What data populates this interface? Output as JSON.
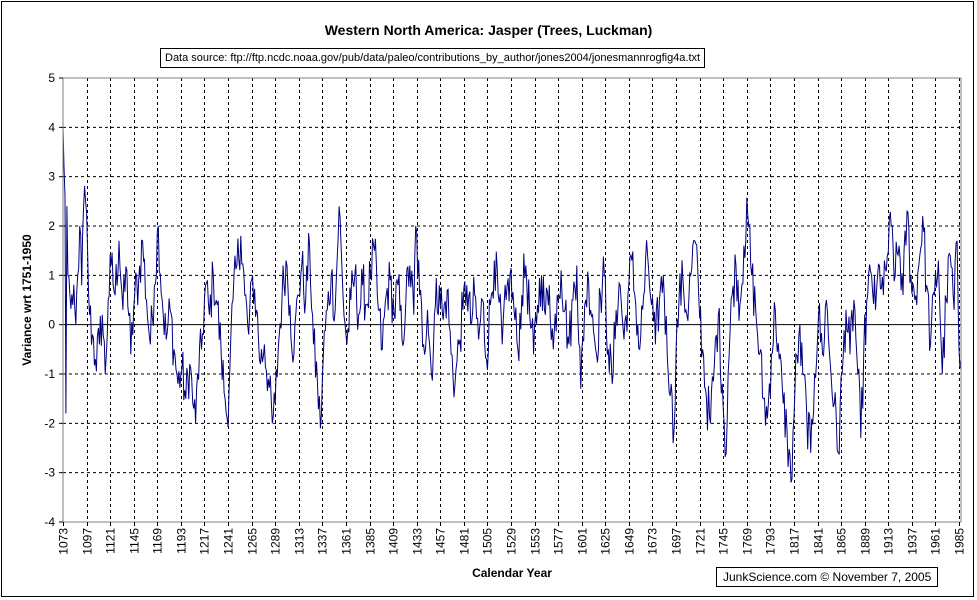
{
  "chart_data": {
    "type": "line",
    "title": "Western North America: Jasper (Trees, Luckman)",
    "source_note": "Data source: ftp://ftp.ncdc.noaa.gov/pub/data/paleo/contributions_by_author/jones2004/jonesmannrogfig4a.txt",
    "credit": "JunkScience.com ©  November 7, 2005",
    "xlabel": "Calendar Year",
    "ylabel": "Variance wrt 1751-1950",
    "xlim": [
      1073,
      1987
    ],
    "ylim": [
      -4,
      5
    ],
    "ytick_labels": [
      "5",
      "4",
      "3",
      "2",
      "1",
      "0",
      "-1",
      "-2",
      "-3",
      "-4"
    ],
    "yticks": [
      5,
      4,
      3,
      2,
      1,
      0,
      -1,
      -2,
      -3,
      -4
    ],
    "xtick_labels": [
      "1073",
      "1097",
      "1121",
      "1145",
      "1169",
      "1193",
      "1217",
      "1241",
      "1265",
      "1289",
      "1313",
      "1337",
      "1361",
      "1385",
      "1409",
      "1433",
      "1457",
      "1481",
      "1505",
      "1529",
      "1553",
      "1577",
      "1601",
      "1625",
      "1649",
      "1673",
      "1697",
      "1721",
      "1745",
      "1769",
      "1793",
      "1817",
      "1841",
      "1865",
      "1889",
      "1913",
      "1937",
      "1961",
      "1985"
    ],
    "xticks": [
      1073,
      1097,
      1121,
      1145,
      1169,
      1193,
      1217,
      1241,
      1265,
      1289,
      1313,
      1337,
      1361,
      1385,
      1409,
      1433,
      1457,
      1481,
      1505,
      1529,
      1553,
      1577,
      1601,
      1625,
      1649,
      1673,
      1697,
      1721,
      1745,
      1769,
      1793,
      1817,
      1841,
      1865,
      1889,
      1913,
      1937,
      1961,
      1985
    ],
    "grid": true,
    "series": [
      {
        "name": "Jasper",
        "color": "#000080",
        "anchors": [
          [
            1073,
            4.0
          ],
          [
            1074,
            3.2
          ],
          [
            1075,
            2.6
          ],
          [
            1076,
            -1.8
          ],
          [
            1077,
            2.4
          ],
          [
            1078,
            1.0
          ],
          [
            1080,
            0.6
          ],
          [
            1083,
            0.4
          ],
          [
            1086,
            0.0
          ],
          [
            1088,
            1.0
          ],
          [
            1090,
            2.0
          ],
          [
            1092,
            0.8
          ],
          [
            1094,
            2.4
          ],
          [
            1096,
            2.5
          ],
          [
            1098,
            1.5
          ],
          [
            1100,
            0.2
          ],
          [
            1103,
            -0.2
          ],
          [
            1106,
            -0.7
          ],
          [
            1110,
            -0.4
          ],
          [
            1113,
            0.2
          ],
          [
            1116,
            -1.0
          ],
          [
            1119,
            0.5
          ],
          [
            1122,
            1.2
          ],
          [
            1126,
            0.6
          ],
          [
            1130,
            1.7
          ],
          [
            1134,
            0.3
          ],
          [
            1138,
            1.1
          ],
          [
            1142,
            -0.6
          ],
          [
            1146,
            0.6
          ],
          [
            1150,
            0.9
          ],
          [
            1154,
            1.7
          ],
          [
            1158,
            0.5
          ],
          [
            1162,
            -0.4
          ],
          [
            1166,
            0.8
          ],
          [
            1170,
            2.0
          ],
          [
            1174,
            0.5
          ],
          [
            1178,
            -0.3
          ],
          [
            1182,
            0.3
          ],
          [
            1186,
            -0.5
          ],
          [
            1190,
            -1.2
          ],
          [
            1194,
            -0.9
          ],
          [
            1198,
            -1.5
          ],
          [
            1202,
            -0.8
          ],
          [
            1206,
            -1.7
          ],
          [
            1208,
            -2.0
          ],
          [
            1210,
            -1.0
          ],
          [
            1214,
            -0.5
          ],
          [
            1218,
            0.8
          ],
          [
            1222,
            0.2
          ],
          [
            1226,
            1.0
          ],
          [
            1230,
            0.4
          ],
          [
            1234,
            -0.6
          ],
          [
            1238,
            -1.5
          ],
          [
            1240,
            -1.9
          ],
          [
            1243,
            -0.8
          ],
          [
            1246,
            0.5
          ],
          [
            1250,
            1.2
          ],
          [
            1254,
            1.8
          ],
          [
            1258,
            0.6
          ],
          [
            1262,
            -0.2
          ],
          [
            1266,
            1.0
          ],
          [
            1270,
            0.3
          ],
          [
            1274,
            -0.8
          ],
          [
            1278,
            -0.4
          ],
          [
            1282,
            -1.1
          ],
          [
            1286,
            -2.0
          ],
          [
            1289,
            -1.6
          ],
          [
            1292,
            -0.5
          ],
          [
            1296,
            0.6
          ],
          [
            1300,
            1.3
          ],
          [
            1304,
            0.4
          ],
          [
            1308,
            -0.6
          ],
          [
            1312,
            0.6
          ],
          [
            1316,
            1.2
          ],
          [
            1320,
            0.5
          ],
          [
            1324,
            1.6
          ],
          [
            1328,
            -0.4
          ],
          [
            1332,
            -1.2
          ],
          [
            1335,
            -2.1
          ],
          [
            1338,
            -0.6
          ],
          [
            1342,
            0.3
          ],
          [
            1346,
            1.0
          ],
          [
            1350,
            0.3
          ],
          [
            1354,
            2.4
          ],
          [
            1358,
            0.6
          ],
          [
            1362,
            -0.4
          ],
          [
            1366,
            0.5
          ],
          [
            1370,
            1.0
          ],
          [
            1374,
            0.2
          ],
          [
            1378,
            0.8
          ],
          [
            1382,
            0.4
          ],
          [
            1386,
            1.0
          ],
          [
            1390,
            1.5
          ],
          [
            1394,
            0.3
          ],
          [
            1398,
            -0.5
          ],
          [
            1402,
            0.6
          ],
          [
            1406,
            0.9
          ],
          [
            1410,
            0.2
          ],
          [
            1414,
            0.8
          ],
          [
            1418,
            -0.3
          ],
          [
            1422,
            0.5
          ],
          [
            1426,
            1.2
          ],
          [
            1430,
            0.2
          ],
          [
            1432,
            2.0
          ],
          [
            1436,
            0.6
          ],
          [
            1440,
            -0.4
          ],
          [
            1444,
            0.3
          ],
          [
            1448,
            -1.0
          ],
          [
            1452,
            0.4
          ],
          [
            1456,
            0.8
          ],
          [
            1460,
            0.1
          ],
          [
            1464,
            0.7
          ],
          [
            1468,
            -0.6
          ],
          [
            1472,
            -1.2
          ],
          [
            1476,
            -0.4
          ],
          [
            1480,
            0.3
          ],
          [
            1484,
            0.8
          ],
          [
            1488,
            0.0
          ],
          [
            1492,
            0.6
          ],
          [
            1496,
            -0.3
          ],
          [
            1500,
            0.5
          ],
          [
            1504,
            -0.7
          ],
          [
            1508,
            0.4
          ],
          [
            1512,
            1.3
          ],
          [
            1516,
            0.6
          ],
          [
            1520,
            -0.4
          ],
          [
            1524,
            0.5
          ],
          [
            1528,
            1.0
          ],
          [
            1532,
            0.3
          ],
          [
            1536,
            -0.5
          ],
          [
            1540,
            0.6
          ],
          [
            1544,
            1.2
          ],
          [
            1548,
            0.2
          ],
          [
            1552,
            -0.6
          ],
          [
            1556,
            0.4
          ],
          [
            1560,
            1.0
          ],
          [
            1564,
            0.2
          ],
          [
            1568,
            0.8
          ],
          [
            1572,
            -0.5
          ],
          [
            1576,
            0.6
          ],
          [
            1580,
            1.1
          ],
          [
            1584,
            0.3
          ],
          [
            1588,
            -0.4
          ],
          [
            1592,
            0.5
          ],
          [
            1596,
            1.2
          ],
          [
            1600,
            -1.3
          ],
          [
            1604,
            0.4
          ],
          [
            1608,
            0.9
          ],
          [
            1612,
            0.2
          ],
          [
            1616,
            -0.6
          ],
          [
            1620,
            0.6
          ],
          [
            1624,
            1.0
          ],
          [
            1628,
            -0.5
          ],
          [
            1632,
            -1.2
          ],
          [
            1636,
            0.3
          ],
          [
            1640,
            0.8
          ],
          [
            1644,
            -0.3
          ],
          [
            1648,
            0.6
          ],
          [
            1652,
            1.3
          ],
          [
            1656,
            0.4
          ],
          [
            1660,
            -0.5
          ],
          [
            1664,
            0.6
          ],
          [
            1668,
            1.4
          ],
          [
            1672,
            0.4
          ],
          [
            1676,
            -0.4
          ],
          [
            1680,
            0.5
          ],
          [
            1684,
            1.0
          ],
          [
            1688,
            -0.6
          ],
          [
            1692,
            -1.2
          ],
          [
            1694,
            -2.4
          ],
          [
            1697,
            -0.5
          ],
          [
            1700,
            0.5
          ],
          [
            1704,
            0.9
          ],
          [
            1708,
            0.2
          ],
          [
            1712,
            1.0
          ],
          [
            1716,
            1.7
          ],
          [
            1720,
            0.6
          ],
          [
            1724,
            -0.5
          ],
          [
            1728,
            -1.5
          ],
          [
            1732,
            -2.0
          ],
          [
            1736,
            -0.8
          ],
          [
            1740,
            0.2
          ],
          [
            1744,
            -1.2
          ],
          [
            1748,
            -2.6
          ],
          [
            1750,
            -1.0
          ],
          [
            1754,
            0.6
          ],
          [
            1758,
            1.2
          ],
          [
            1762,
            0.4
          ],
          [
            1766,
            1.6
          ],
          [
            1770,
            2.2
          ],
          [
            1774,
            1.0
          ],
          [
            1778,
            0.3
          ],
          [
            1782,
            -0.6
          ],
          [
            1786,
            -1.5
          ],
          [
            1790,
            -1.9
          ],
          [
            1794,
            -0.6
          ],
          [
            1798,
            0.3
          ],
          [
            1802,
            -0.7
          ],
          [
            1806,
            -1.6
          ],
          [
            1810,
            -2.2
          ],
          [
            1814,
            -3.2
          ],
          [
            1818,
            -1.3
          ],
          [
            1822,
            -0.2
          ],
          [
            1826,
            -1.0
          ],
          [
            1830,
            -1.8
          ],
          [
            1834,
            -2.6
          ],
          [
            1838,
            -1.0
          ],
          [
            1842,
            0.2
          ],
          [
            1846,
            -0.6
          ],
          [
            1850,
            0.5
          ],
          [
            1854,
            -0.8
          ],
          [
            1858,
            -1.6
          ],
          [
            1862,
            -2.6
          ],
          [
            1866,
            -1.0
          ],
          [
            1870,
            0.3
          ],
          [
            1874,
            -0.6
          ],
          [
            1878,
            0.5
          ],
          [
            1882,
            -1.0
          ],
          [
            1885,
            -2.3
          ],
          [
            1888,
            -0.6
          ],
          [
            1892,
            0.6
          ],
          [
            1896,
            1.0
          ],
          [
            1900,
            0.3
          ],
          [
            1904,
            1.2
          ],
          [
            1908,
            0.6
          ],
          [
            1912,
            1.4
          ],
          [
            1916,
            2.0
          ],
          [
            1920,
            1.0
          ],
          [
            1924,
            1.6
          ],
          [
            1928,
            0.6
          ],
          [
            1932,
            2.3
          ],
          [
            1936,
            1.0
          ],
          [
            1940,
            0.5
          ],
          [
            1944,
            1.2
          ],
          [
            1948,
            2.2
          ],
          [
            1952,
            0.8
          ],
          [
            1956,
            -0.4
          ],
          [
            1960,
            0.6
          ],
          [
            1964,
            1.3
          ],
          [
            1968,
            -1.0
          ],
          [
            1972,
            0.5
          ],
          [
            1976,
            1.4
          ],
          [
            1980,
            0.3
          ],
          [
            1983,
            1.7
          ],
          [
            1985,
            -0.5
          ],
          [
            1987,
            -0.7
          ]
        ]
      }
    ]
  }
}
